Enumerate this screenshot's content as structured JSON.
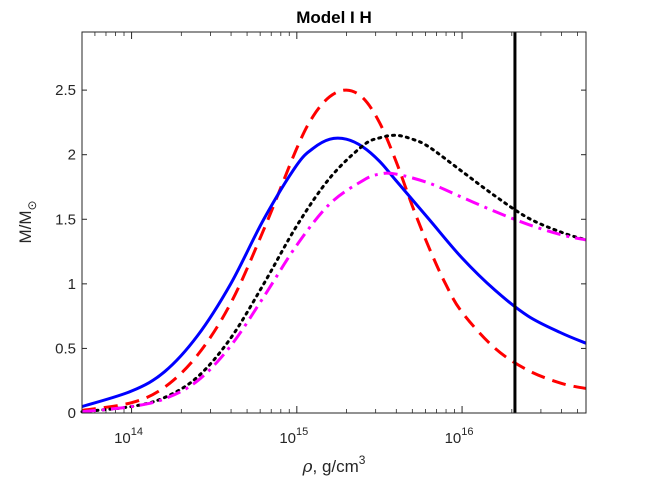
{
  "chart_data": {
    "type": "line",
    "title": "Model I H",
    "xlabel": {
      "symbol": "ρ",
      "text": ", g/cm",
      "sup": "3"
    },
    "ylabel": {
      "text": "M/M",
      "sub": "⊙"
    },
    "xscale": "log",
    "xlim_log10": [
      13.7,
      16.75
    ],
    "ylim": [
      0,
      2.95
    ],
    "x_ticks": [
      {
        "log10": 14,
        "base": "10",
        "exp": "14"
      },
      {
        "log10": 15,
        "base": "10",
        "exp": "15"
      },
      {
        "log10": 16,
        "base": "10",
        "exp": "16"
      }
    ],
    "y_ticks": [
      {
        "value": 0,
        "label": "0"
      },
      {
        "value": 0.5,
        "label": "0.5"
      },
      {
        "value": 1,
        "label": "1"
      },
      {
        "value": 1.5,
        "label": "1.5"
      },
      {
        "value": 2,
        "label": "2"
      },
      {
        "value": 2.5,
        "label": "2.5"
      }
    ],
    "vertical_line": {
      "log10_x": 16.32,
      "color": "#000000"
    },
    "series": [
      {
        "name": "red-dashed",
        "color": "#ff0000",
        "dash": "dashed",
        "points": [
          [
            13.7,
            0.02
          ],
          [
            14.0,
            0.08
          ],
          [
            14.2,
            0.2
          ],
          [
            14.4,
            0.45
          ],
          [
            14.6,
            0.85
          ],
          [
            14.8,
            1.42
          ],
          [
            15.0,
            2.05
          ],
          [
            15.1,
            2.3
          ],
          [
            15.2,
            2.45
          ],
          [
            15.3,
            2.5
          ],
          [
            15.4,
            2.44
          ],
          [
            15.5,
            2.25
          ],
          [
            15.6,
            1.95
          ],
          [
            15.7,
            1.6
          ],
          [
            15.8,
            1.28
          ],
          [
            15.9,
            1.0
          ],
          [
            16.0,
            0.78
          ],
          [
            16.2,
            0.5
          ],
          [
            16.4,
            0.33
          ],
          [
            16.6,
            0.23
          ],
          [
            16.75,
            0.19
          ]
        ]
      },
      {
        "name": "blue-solid",
        "color": "#0000ff",
        "dash": "solid",
        "points": [
          [
            13.7,
            0.05
          ],
          [
            14.0,
            0.17
          ],
          [
            14.2,
            0.32
          ],
          [
            14.4,
            0.6
          ],
          [
            14.6,
            1.0
          ],
          [
            14.8,
            1.5
          ],
          [
            15.0,
            1.92
          ],
          [
            15.1,
            2.05
          ],
          [
            15.2,
            2.12
          ],
          [
            15.3,
            2.12
          ],
          [
            15.4,
            2.06
          ],
          [
            15.5,
            1.95
          ],
          [
            15.6,
            1.8
          ],
          [
            15.8,
            1.5
          ],
          [
            16.0,
            1.2
          ],
          [
            16.2,
            0.95
          ],
          [
            16.4,
            0.75
          ],
          [
            16.6,
            0.62
          ],
          [
            16.75,
            0.54
          ]
        ]
      },
      {
        "name": "black-dotted",
        "color": "#000000",
        "dash": "dotted",
        "points": [
          [
            13.7,
            0.01
          ],
          [
            14.0,
            0.05
          ],
          [
            14.2,
            0.12
          ],
          [
            14.4,
            0.28
          ],
          [
            14.6,
            0.58
          ],
          [
            14.8,
            1.0
          ],
          [
            15.0,
            1.45
          ],
          [
            15.2,
            1.82
          ],
          [
            15.4,
            2.07
          ],
          [
            15.5,
            2.13
          ],
          [
            15.6,
            2.15
          ],
          [
            15.7,
            2.12
          ],
          [
            15.8,
            2.06
          ],
          [
            16.0,
            1.87
          ],
          [
            16.2,
            1.68
          ],
          [
            16.4,
            1.51
          ],
          [
            16.6,
            1.4
          ],
          [
            16.75,
            1.34
          ]
        ]
      },
      {
        "name": "magenta-dashdot",
        "color": "#ff00ff",
        "dash": "dashdot",
        "points": [
          [
            13.7,
            0.01
          ],
          [
            14.0,
            0.05
          ],
          [
            14.2,
            0.11
          ],
          [
            14.4,
            0.25
          ],
          [
            14.6,
            0.52
          ],
          [
            14.8,
            0.9
          ],
          [
            15.0,
            1.3
          ],
          [
            15.2,
            1.62
          ],
          [
            15.4,
            1.8
          ],
          [
            15.5,
            1.85
          ],
          [
            15.6,
            1.85
          ],
          [
            15.8,
            1.78
          ],
          [
            16.0,
            1.67
          ],
          [
            16.2,
            1.56
          ],
          [
            16.4,
            1.46
          ],
          [
            16.6,
            1.38
          ],
          [
            16.75,
            1.34
          ]
        ]
      }
    ]
  }
}
